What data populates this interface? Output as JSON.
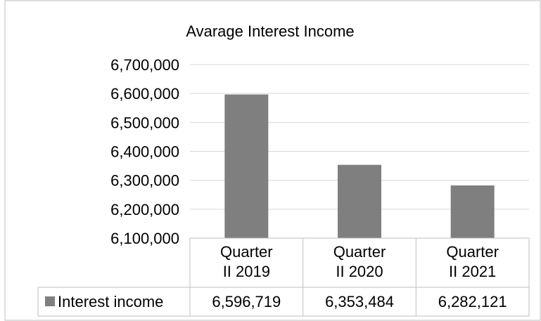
{
  "chart_data": {
    "type": "bar",
    "title": "Avarage Interest Income",
    "categories": [
      [
        "Quarter",
        "II 2019"
      ],
      [
        "Quarter",
        "II 2020"
      ],
      [
        "Quarter",
        "II 2021"
      ]
    ],
    "series": [
      {
        "name": "Interest income",
        "values": [
          6596719,
          6353484,
          6282121
        ],
        "value_labels": [
          "6,596,719",
          "6,353,484",
          "6,282,121"
        ],
        "color": "#7f7f7f"
      }
    ],
    "ylim": [
      6100000,
      6700000
    ],
    "yticks": [
      {
        "value": 6700000,
        "label": "6,700,000"
      },
      {
        "value": 6600000,
        "label": "6,600,000"
      },
      {
        "value": 6500000,
        "label": "6,500,000"
      },
      {
        "value": 6400000,
        "label": "6,400,000"
      },
      {
        "value": 6300000,
        "label": "6,300,000"
      },
      {
        "value": 6200000,
        "label": "6,200,000"
      },
      {
        "value": 6100000,
        "label": "6,100,000"
      }
    ],
    "grid": true,
    "legend": "data-table",
    "colors": {
      "grid": "#d9d9d9",
      "border": "#bfbfbf",
      "table": "#bfbfbf"
    }
  }
}
